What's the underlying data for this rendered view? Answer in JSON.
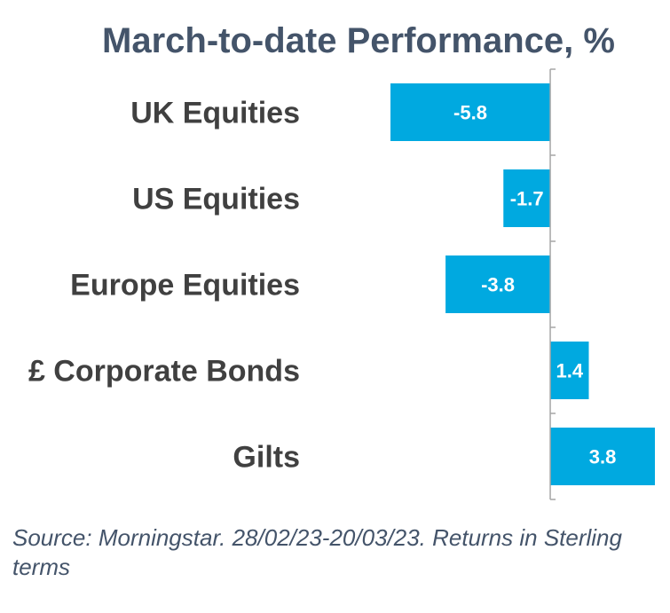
{
  "chart_data": {
    "type": "bar",
    "orientation": "horizontal",
    "title": "March-to-date Performance, %",
    "categories": [
      "UK Equities",
      "US Equities",
      "Europe Equities",
      "£ Corporate Bonds",
      "Gilts"
    ],
    "values": [
      -5.8,
      -1.7,
      -3.8,
      1.4,
      3.8
    ],
    "data_labels": [
      "-5.8",
      "-1.7",
      "-3.8",
      "1.4",
      "3.8"
    ],
    "xlim": [
      -5.8,
      3.8
    ],
    "grid": false,
    "legend": "none",
    "bar_color": "#00a9e0",
    "label_color": "#ffffff",
    "category_color": "#404040",
    "title_color": "#44546a",
    "axis_color": "#a6a6a6"
  },
  "source_note": "Source: Morningstar. 28/02/23-20/03/23. Returns in Sterling terms"
}
